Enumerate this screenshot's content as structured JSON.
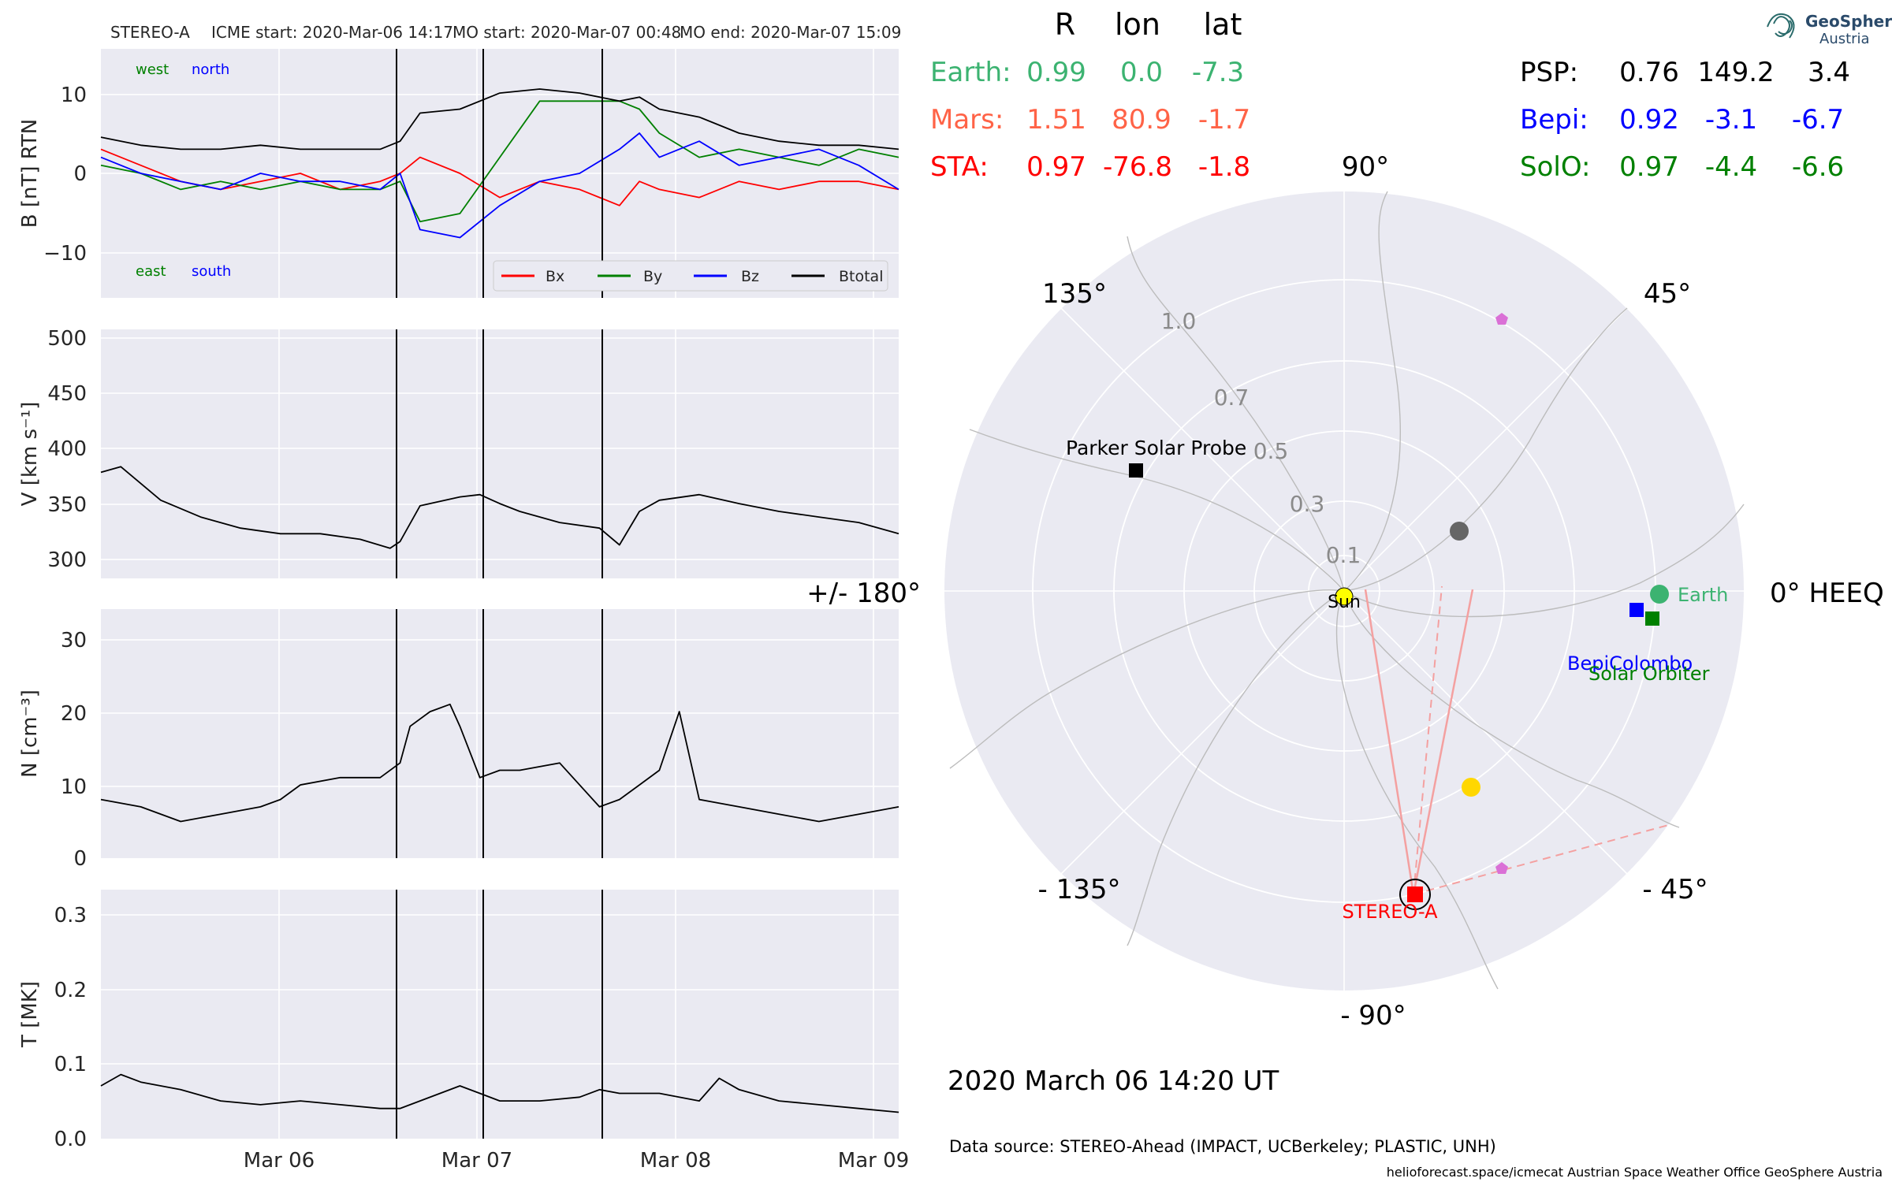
{
  "header": {
    "spacecraft": "STEREO-A",
    "icme_start": "ICME start: 2020-Mar-06 14:17",
    "mo_start": "MO start: 2020-Mar-07 00:48",
    "mo_end": "MO end: 2020-Mar-07 15:09"
  },
  "annotations": {
    "west": "west",
    "north": "north",
    "east": "east",
    "south": "south"
  },
  "legend": [
    "Bx",
    "By",
    "Bz",
    "Btotal"
  ],
  "colors": {
    "bx": "#ff0000",
    "by": "#008000",
    "bz": "#0000ff",
    "btotal": "#000000",
    "earth": "#3cb371",
    "mars": "#ff6347",
    "sta": "#ff0000",
    "psp": "#000000",
    "bepi": "#0000ff",
    "solo": "#008000",
    "panel_bg": "#eaeaf2",
    "sun": "#ffff00",
    "planet_yellow": "#ffd700",
    "planet_grey": "#666666",
    "pentagon": "#da70d6"
  },
  "table": {
    "headers": [
      "R",
      "lon",
      "lat"
    ],
    "left": [
      {
        "name": "Earth:",
        "r": "0.99",
        "lon": "0.0",
        "lat": "-7.3"
      },
      {
        "name": "Mars:",
        "r": "1.51",
        "lon": "80.9",
        "lat": "-1.7"
      },
      {
        "name": "STA:",
        "r": "0.97",
        "lon": "-76.8",
        "lat": "-1.8"
      }
    ],
    "right": [
      {
        "name": "PSP:",
        "r": "0.76",
        "lon": "149.2",
        "lat": "3.4"
      },
      {
        "name": "Bepi:",
        "r": "0.92",
        "lon": "-3.1",
        "lat": "-6.7"
      },
      {
        "name": "SolO:",
        "r": "0.97",
        "lon": "-4.4",
        "lat": "-6.6"
      }
    ]
  },
  "polar": {
    "angle_labels": {
      "a90": "90°",
      "a45": "45°",
      "a135": "135°",
      "a0": "0° HEEQ",
      "a180": "+/- 180°",
      "am45": "- 45°",
      "am135": "- 135°",
      "am90": "- 90°"
    },
    "r_labels": [
      "0.1",
      "0.3",
      "0.5",
      "0.7",
      "1.0"
    ],
    "body_labels": {
      "sun": "Sun",
      "earth": "Earth",
      "psp": "Parker Solar Probe",
      "bepi": "BepiColombo",
      "solo": "Solar Orbiter",
      "sta": "STEREO-A"
    }
  },
  "footer": {
    "datetime": "2020 March 06  14:20 UT",
    "source": "Data source: STEREO-Ahead (IMPACT, UCBerkeley; PLASTIC, UNH)",
    "credit": "helioforecast.space/icmecat   Austrian Space Weather Office   GeoSphere Austria"
  },
  "logo": {
    "line1": "GeoSphere",
    "line2": "Austria"
  },
  "chart_data": [
    {
      "type": "line",
      "panel": "B",
      "ylabel": "B [nT] RTN",
      "yticks": [
        "−10",
        "0",
        "10"
      ],
      "ylim": [
        -15.5,
        15.5
      ],
      "xlim_days": [
        0,
        4.0
      ],
      "xtick_labels": [
        "Mar 06",
        "Mar 07",
        "Mar 08",
        "Mar 09"
      ],
      "event_lines": [
        "2020-Mar-06 14:17",
        "2020-Mar-07 00:48",
        "2020-Mar-07 15:09"
      ],
      "series": [
        {
          "name": "Bx",
          "x": [
            0.0,
            0.2,
            0.4,
            0.6,
            0.8,
            1.0,
            1.2,
            1.4,
            1.5,
            1.6,
            1.8,
            2.0,
            2.2,
            2.4,
            2.6,
            2.7,
            2.8,
            3.0,
            3.2,
            3.4,
            3.6,
            3.8,
            4.0
          ],
          "y": [
            3,
            1,
            -1,
            -2,
            -1,
            0,
            -2,
            -1,
            0,
            2,
            0,
            -3,
            -1,
            -2,
            -4,
            -1,
            -2,
            -3,
            -1,
            -2,
            -1,
            -1,
            -2
          ]
        },
        {
          "name": "By",
          "x": [
            0.0,
            0.2,
            0.4,
            0.6,
            0.8,
            1.0,
            1.2,
            1.4,
            1.5,
            1.6,
            1.8,
            2.0,
            2.2,
            2.4,
            2.6,
            2.7,
            2.8,
            3.0,
            3.2,
            3.4,
            3.6,
            3.8,
            4.0
          ],
          "y": [
            1,
            0,
            -2,
            -1,
            -2,
            -1,
            -2,
            -2,
            -1,
            -6,
            -5,
            2,
            9,
            9,
            9,
            8,
            5,
            2,
            3,
            2,
            1,
            3,
            2
          ]
        },
        {
          "name": "Bz",
          "x": [
            0.0,
            0.2,
            0.4,
            0.6,
            0.8,
            1.0,
            1.2,
            1.4,
            1.5,
            1.6,
            1.8,
            2.0,
            2.2,
            2.4,
            2.6,
            2.7,
            2.8,
            3.0,
            3.2,
            3.4,
            3.6,
            3.8,
            4.0
          ],
          "y": [
            2,
            0,
            -1,
            -2,
            0,
            -1,
            -1,
            -2,
            0,
            -7,
            -8,
            -4,
            -1,
            0,
            3,
            5,
            2,
            4,
            1,
            2,
            3,
            1,
            -2
          ]
        },
        {
          "name": "Btotal",
          "x": [
            0.0,
            0.2,
            0.4,
            0.6,
            0.8,
            1.0,
            1.2,
            1.4,
            1.5,
            1.6,
            1.8,
            2.0,
            2.2,
            2.4,
            2.6,
            2.7,
            2.8,
            3.0,
            3.2,
            3.4,
            3.6,
            3.8,
            4.0
          ],
          "y": [
            4.5,
            3.5,
            3,
            3,
            3.5,
            3,
            3,
            3,
            4,
            7.5,
            8,
            10,
            10.5,
            10,
            9,
            9.5,
            8,
            7,
            5,
            4,
            3.5,
            3.5,
            3
          ]
        }
      ]
    },
    {
      "type": "line",
      "panel": "V",
      "ylabel": "V [km s⁻¹]",
      "yticks": [
        "300",
        "350",
        "400",
        "450",
        "500"
      ],
      "ylim": [
        285,
        508
      ],
      "series": [
        {
          "x": [
            0.0,
            0.1,
            0.2,
            0.3,
            0.5,
            0.7,
            0.9,
            1.1,
            1.3,
            1.45,
            1.5,
            1.6,
            1.8,
            1.9,
            2.0,
            2.1,
            2.3,
            2.5,
            2.6,
            2.7,
            2.8,
            3.0,
            3.2,
            3.4,
            3.6,
            3.8,
            4.0
          ],
          "y": [
            380,
            385,
            370,
            355,
            340,
            330,
            325,
            325,
            320,
            312,
            318,
            350,
            358,
            360,
            352,
            345,
            335,
            330,
            315,
            345,
            355,
            360,
            352,
            345,
            340,
            335,
            325
          ]
        }
      ]
    },
    {
      "type": "line",
      "panel": "N",
      "ylabel": "N [cm⁻³]",
      "yticks": [
        "0",
        "10",
        "20",
        "30"
      ],
      "ylim": [
        0,
        34
      ],
      "series": [
        {
          "x": [
            0.0,
            0.2,
            0.4,
            0.6,
            0.8,
            0.9,
            1.0,
            1.2,
            1.4,
            1.5,
            1.55,
            1.65,
            1.75,
            1.8,
            1.9,
            2.0,
            2.1,
            2.3,
            2.5,
            2.6,
            2.7,
            2.8,
            2.9,
            3.0,
            3.2,
            3.4,
            3.6,
            3.8,
            4.0
          ],
          "y": [
            8,
            7,
            5,
            6,
            7,
            8,
            10,
            11,
            11,
            13,
            18,
            20,
            21,
            18,
            11,
            12,
            12,
            13,
            7,
            8,
            10,
            12,
            20,
            8,
            7,
            6,
            5,
            6,
            7
          ]
        }
      ]
    },
    {
      "type": "line",
      "panel": "T",
      "ylabel": "T [MK]",
      "yticks": [
        "0.0",
        "0.1",
        "0.2",
        "0.3"
      ],
      "ylim": [
        0,
        0.33
      ],
      "series": [
        {
          "x": [
            0.0,
            0.1,
            0.2,
            0.4,
            0.6,
            0.8,
            1.0,
            1.2,
            1.4,
            1.5,
            1.6,
            1.8,
            1.9,
            2.0,
            2.2,
            2.4,
            2.5,
            2.6,
            2.8,
            3.0,
            3.1,
            3.2,
            3.4,
            3.6,
            3.8,
            4.0
          ],
          "y": [
            0.07,
            0.085,
            0.075,
            0.065,
            0.05,
            0.045,
            0.05,
            0.045,
            0.04,
            0.04,
            0.05,
            0.07,
            0.06,
            0.05,
            0.05,
            0.055,
            0.065,
            0.06,
            0.06,
            0.05,
            0.08,
            0.065,
            0.05,
            0.045,
            0.04,
            0.035
          ]
        }
      ]
    }
  ]
}
